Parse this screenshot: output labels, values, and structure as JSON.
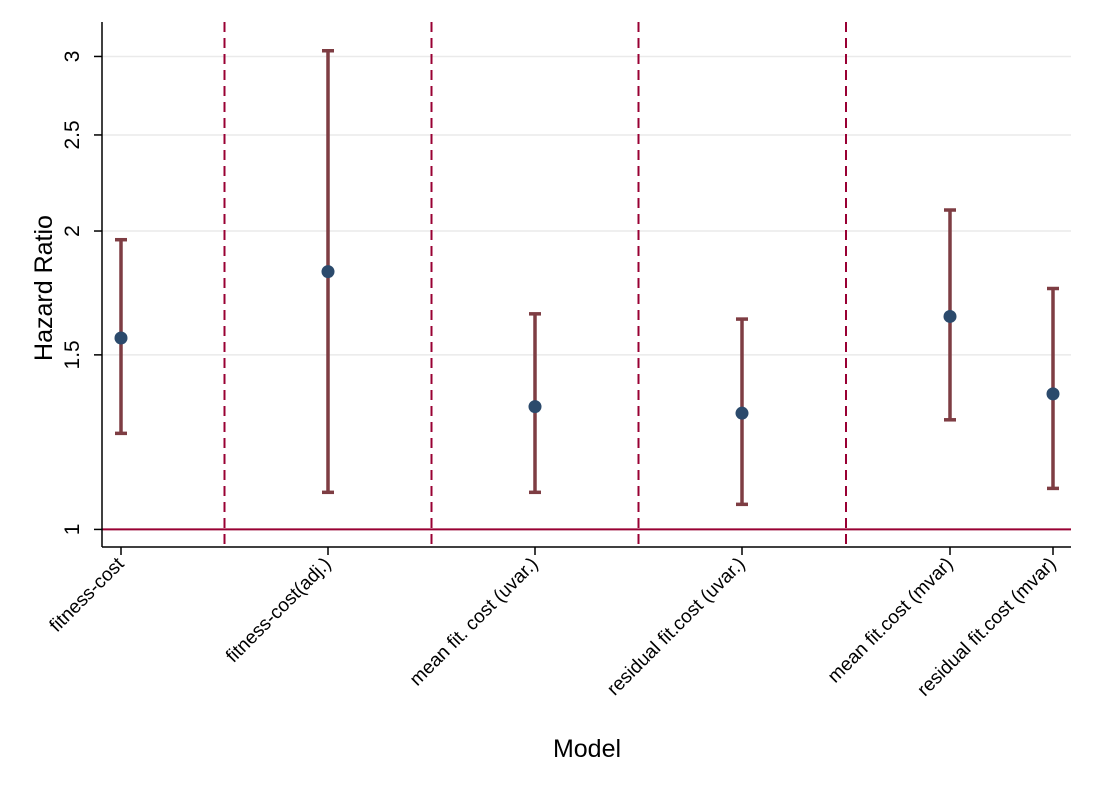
{
  "chart_data": {
    "type": "scatter",
    "subtype": "point-estimate-with-confidence-intervals",
    "title": "",
    "xlabel": "Model",
    "ylabel": "Hazard Ratio",
    "y_scale": "log",
    "ylim": [
      0.96,
      3.25
    ],
    "y_ticks": [
      1,
      1.5,
      2,
      2.5,
      3
    ],
    "y_tick_labels": [
      "1",
      "1.5",
      "2",
      "2.5",
      "3"
    ],
    "grid": "horizontal",
    "reference_line": {
      "y": 1,
      "color": "#990033"
    },
    "group_separators": {
      "after_category_index": [
        0,
        1,
        2,
        3
      ],
      "style": "dashed",
      "color": "#990033"
    },
    "categories": [
      "fitness-cost",
      "fitness-cost(adj.)",
      "mean fit. cost (uvar.)",
      "residual fit.cost (uvar.)",
      "mean fit.cost (mvar)",
      "residual fit.cost (mvar)"
    ],
    "series": [
      {
        "estimate": [
          1.56,
          1.82,
          1.33,
          1.31,
          1.64,
          1.37
        ],
        "ci_lower": [
          1.25,
          1.09,
          1.09,
          1.06,
          1.29,
          1.1
        ],
        "ci_upper": [
          1.96,
          3.04,
          1.65,
          1.63,
          2.1,
          1.75
        ]
      }
    ],
    "colors": {
      "marker": "#2b4a6c",
      "ci": "#7e3d43",
      "reference": "#990033",
      "separator": "#990033",
      "grid": "#eaeaea",
      "axis": "#000000"
    }
  }
}
